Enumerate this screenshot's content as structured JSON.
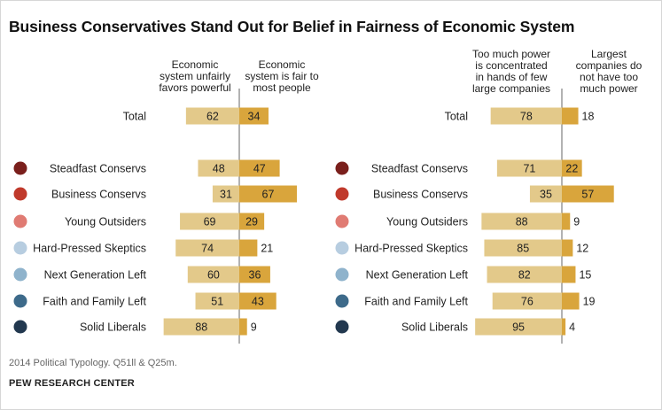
{
  "title": "Business Conservatives Stand Out for Belief in Fairness of Economic System",
  "source": "2014 Political Typology. Q51ll & Q25m.",
  "credit": "PEW RESEARCH CENTER",
  "colors": {
    "light_bar": "#e3c98a",
    "dark_bar": "#d9a53c",
    "divider": "#666666",
    "label_text": "#222222"
  },
  "chart_data": [
    {
      "type": "bar",
      "orientation": "diverging-horizontal",
      "categories": [
        "Total",
        "Steadfast Conservs",
        "Business Conservs",
        "Young Outsiders",
        "Hard-Pressed Skeptics",
        "Next Generation Left",
        "Faith and Family Left",
        "Solid Liberals"
      ],
      "category_dot_colors": [
        null,
        "#7a1f1c",
        "#c0392b",
        "#e07b73",
        "#b7cde0",
        "#8fb3cc",
        "#3d6a8a",
        "#22384f"
      ],
      "series": [
        {
          "name": "Economic system unfairly favors powerful",
          "values": [
            62,
            48,
            31,
            69,
            74,
            60,
            51,
            88
          ]
        },
        {
          "name": "Economic system is fair to most people",
          "values": [
            34,
            47,
            67,
            29,
            21,
            36,
            43,
            9
          ]
        }
      ]
    },
    {
      "type": "bar",
      "orientation": "diverging-horizontal",
      "categories": [
        "Total",
        "Steadfast Conservs",
        "Business Conservs",
        "Young Outsiders",
        "Hard-Pressed Skeptics",
        "Next Generation Left",
        "Faith and Family Left",
        "Solid Liberals"
      ],
      "category_dot_colors": [
        null,
        "#7a1f1c",
        "#c0392b",
        "#e07b73",
        "#b7cde0",
        "#8fb3cc",
        "#3d6a8a",
        "#22384f"
      ],
      "series": [
        {
          "name": "Too much power is concentrated in hands of few large companies",
          "values": [
            78,
            71,
            35,
            88,
            85,
            82,
            76,
            95
          ]
        },
        {
          "name": "Largest companies do not have too much power",
          "values": [
            18,
            22,
            57,
            9,
            12,
            15,
            19,
            4
          ]
        }
      ]
    }
  ]
}
